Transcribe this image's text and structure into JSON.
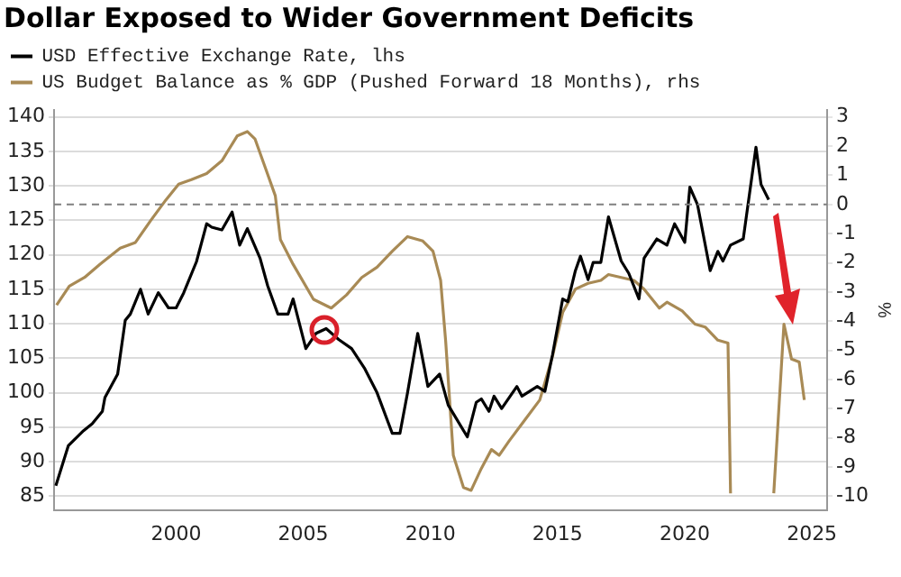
{
  "chart_data": {
    "type": "line",
    "title": "Dollar Exposed to Wider Government Deficits",
    "y2label": "%",
    "series": [
      {
        "name": "USD Effective Exchange Rate, lhs",
        "color": "#000000",
        "axis": "y",
        "x": [
          1995.27,
          1995.76,
          1996.36,
          1996.7,
          1997.1,
          1997.2,
          1997.7,
          1998.0,
          1998.2,
          1998.6,
          1998.9,
          1999.3,
          1999.7,
          2000.0,
          2000.3,
          2000.8,
          2001.2,
          2001.4,
          2001.8,
          2002.2,
          2002.5,
          2002.8,
          2003.3,
          2003.6,
          2004.0,
          2004.4,
          2004.6,
          2005.1,
          2005.5,
          2005.9,
          2006.4,
          2006.9,
          2007.4,
          2007.9,
          2008.5,
          2008.8,
          2009.1,
          2009.5,
          2009.9,
          2010.36,
          2010.7,
          2011.45,
          2011.8,
          2012.0,
          2012.3,
          2012.5,
          2012.8,
          2013.4,
          2013.6,
          2014.2,
          2014.5,
          2014.8,
          2015.2,
          2015.4,
          2015.7,
          2015.9,
          2016.2,
          2016.4,
          2016.7,
          2017.0,
          2017.5,
          2017.8,
          2018.2,
          2018.4,
          2018.9,
          2019.3,
          2019.6,
          2020.0,
          2020.2,
          2020.5,
          2021.0,
          2021.3,
          2021.5,
          2021.8,
          2022.3,
          2022.8,
          2023.0,
          2023.3
        ],
        "values": [
          86.5,
          92.3,
          94.5,
          95.5,
          97.3,
          99.3,
          102.7,
          110.5,
          111.4,
          115,
          111.4,
          114.5,
          112.3,
          112.3,
          114.5,
          119,
          124.5,
          124,
          123.6,
          126.2,
          121.4,
          123.8,
          119.5,
          115.5,
          111.4,
          111.4,
          113.6,
          106.4,
          108.6,
          109.3,
          107.7,
          106.4,
          103.6,
          100,
          94.1,
          94.1,
          100,
          108.6,
          100.9,
          102.7,
          98.2,
          93.6,
          98.6,
          99.1,
          97.3,
          99.5,
          97.7,
          100.9,
          99.5,
          100.9,
          100.2,
          105.5,
          113.6,
          113.2,
          117.7,
          119.8,
          116.4,
          118.9,
          118.9,
          125.5,
          119.1,
          117.3,
          113.6,
          119.5,
          122.3,
          121.4,
          124.5,
          121.8,
          129.8,
          127.3,
          117.7,
          120.5,
          119.1,
          121.4,
          122.3,
          135.6,
          130.2,
          128
        ]
      },
      {
        "name": "US Budget Balance as % GDP (Pushed Forward 18 Months), rhs",
        "color": "#a88a55",
        "axis": "y2",
        "x": [
          1995.3,
          1995.8,
          1996.4,
          1997.0,
          1997.8,
          1998.4,
          1999.0,
          1999.6,
          2000.1,
          2000.6,
          2001.2,
          2001.8,
          2002.4,
          2002.8,
          2003.1,
          2003.5,
          2003.9,
          2004.1,
          2004.6,
          2005.4,
          2006.1,
          2006.7,
          2007.3,
          2007.9,
          2008.5,
          2009.1,
          2009.7,
          2010.1,
          2010.4,
          2010.6,
          2010.9,
          2011.3,
          2011.6,
          2012.0,
          2012.4,
          2012.7,
          2013.1,
          2013.7,
          2014.3,
          2014.8,
          2015.2,
          2015.7,
          2016.2,
          2016.7,
          2017.0,
          2017.5,
          2018.0,
          2018.4,
          2019.0,
          2019.3,
          2019.9,
          2020.4,
          2020.8,
          2021.3,
          2021.7,
          2021.8,
          2022.5,
          2023.5,
          2023.9,
          2024.2,
          2024.5,
          2024.7
        ],
        "values": [
          -3.45,
          -2.8,
          -2.5,
          -2.05,
          -1.5,
          -1.3,
          -0.55,
          0.16,
          0.7,
          0.85,
          1.06,
          1.5,
          2.35,
          2.5,
          2.25,
          1.28,
          0.3,
          -1.2,
          -2.05,
          -3.25,
          -3.55,
          -3.1,
          -2.5,
          -2.15,
          -1.6,
          -1.1,
          -1.25,
          -1.6,
          -2.6,
          -4.7,
          -8.6,
          -9.7,
          -9.8,
          -9.05,
          -8.4,
          -8.6,
          -8.1,
          -7.4,
          -6.7,
          -5.2,
          -3.7,
          -2.9,
          -2.7,
          -2.6,
          -2.4,
          -2.5,
          -2.6,
          -2.9,
          -3.55,
          -3.35,
          -3.65,
          -4.1,
          -4.2,
          -4.65,
          -4.75,
          -9.9,
          null,
          -9.9,
          -4.1,
          -5.3,
          -5.4,
          -6.7
        ]
      }
    ],
    "xlim": [
      1995.2,
      2025.6
    ],
    "xticks": [
      2000,
      2005,
      2010,
      2015,
      2020,
      2025
    ],
    "ylim": [
      83,
      141
    ],
    "yticks": [
      85,
      90,
      95,
      100,
      105,
      110,
      115,
      120,
      125,
      130,
      135,
      140
    ],
    "y2lim": [
      -10.47,
      3.24
    ],
    "y2ticks": [
      -10,
      -9,
      -8,
      -7,
      -6,
      -5,
      -4,
      -3,
      -2,
      -1,
      0,
      1,
      2,
      3
    ],
    "ref_lines": [
      {
        "axis": "y2",
        "value": 0,
        "color": "#808080",
        "line_style": "dashed"
      }
    ],
    "grid": "y",
    "legend": "top left",
    "marker": "none",
    "line_style": "solid"
  }
}
